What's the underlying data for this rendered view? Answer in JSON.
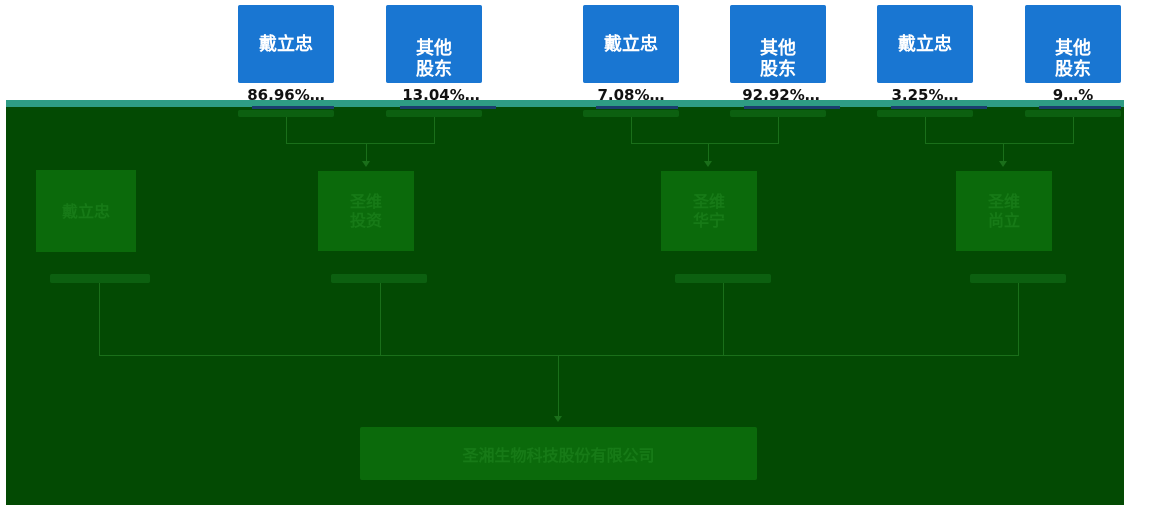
{
  "shareholders": [
    {
      "label": "戴立忠",
      "pct": "86.96%…"
    },
    {
      "label": "其他\n股东",
      "pct": "13.04%…"
    },
    {
      "label": "戴立忠",
      "pct": "7.08%…"
    },
    {
      "label": "其他\n股东",
      "pct": "92.92%…"
    },
    {
      "label": "戴立忠",
      "pct": "3.25%…"
    },
    {
      "label": "其他\n股东",
      "pct": "9…%"
    }
  ],
  "middle": [
    {
      "label": "戴立忠"
    },
    {
      "label": "圣维\n投资"
    },
    {
      "label": "圣维\n华宁"
    },
    {
      "label": "圣维\n尚立"
    }
  ],
  "company": {
    "label": "圣湘生物科技股份有限公司"
  },
  "colors": {
    "top_box": "#1976d2",
    "overlay": "#034a03",
    "teal_band": "#2e9c84",
    "ghost": "#0b6a0b"
  }
}
